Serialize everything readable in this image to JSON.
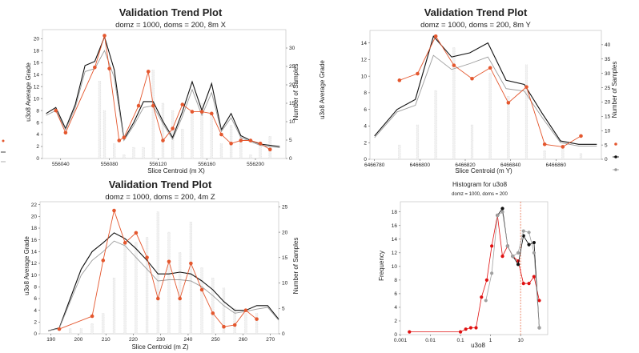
{
  "charts": [
    {
      "title": "Validation Trend Plot",
      "subtitle": "domz = 1000, doms = 200, 8m X",
      "xlabel": "Slice Centroid (m X)",
      "ylabel": "u3o8 Average Grade",
      "y2label": "Number of Samples"
    },
    {
      "title": "Validation Trend Plot",
      "subtitle": "domz = 1000, doms = 200, 8m Y",
      "xlabel": "Slice Centroid (m Y)",
      "ylabel": "u3o8 Average Grade",
      "y2label": "Number of Samples"
    },
    {
      "title": "Validation Trend Plot",
      "subtitle": "domz = 1000, doms = 200, 4m Z",
      "xlabel": "Slice Centroid (m Z)",
      "ylabel": "u3o8 Average Grade",
      "y2label": "Number of Samples"
    },
    {
      "title": "Histogram for u3o8",
      "subtitle": "domz = 1000, doms = 200",
      "xlabel": "u3o8",
      "ylabel": "Frequency"
    }
  ],
  "colors": {
    "samples": "#e4572e",
    "estimate": "#111111",
    "estimate2": "#9a9a9a",
    "bars": "#d4d4d4",
    "hist_red": "#e01010",
    "hist_black": "#111111",
    "hist_gray": "#a0a0a0",
    "median_line": "#e4572e"
  },
  "chart_data": [
    {
      "type": "line",
      "xlim": [
        556025,
        556225
      ],
      "xticks": [
        556040,
        556080,
        556120,
        556160,
        556200
      ],
      "ylim": [
        0,
        21.5
      ],
      "yticks": [
        0,
        2,
        4,
        6,
        8,
        10,
        12,
        14,
        16,
        18,
        20
      ],
      "y2lim": [
        0,
        35
      ],
      "y2ticks": [
        0,
        5,
        10,
        15,
        20,
        25,
        30
      ],
      "bars": {
        "x": [
          556072,
          556076,
          556084,
          556092,
          556100,
          556108,
          556116,
          556124,
          556132,
          556140,
          556148,
          556156,
          556164,
          556172,
          556180,
          556188,
          556196,
          556204,
          556212
        ],
        "values": [
          21,
          13,
          4,
          1,
          3,
          3,
          24,
          15,
          13,
          8,
          12,
          15,
          12,
          4,
          9,
          6,
          1,
          4,
          6
        ]
      },
      "series": [
        {
          "x": [
            556028,
            556036,
            556044,
            556052,
            556060,
            556068,
            556076,
            556084,
            556092,
            556100,
            556108,
            556116,
            556124,
            556132,
            556140,
            556148,
            556156,
            556164,
            556172,
            556180,
            556188,
            556196,
            556204,
            556212,
            556220
          ],
          "values": [
            7.5,
            8.5,
            5.0,
            9.0,
            15.5,
            16.2,
            20.3,
            14.8,
            3.2,
            6.0,
            9.5,
            9.5,
            6.2,
            3.5,
            7.8,
            12.8,
            8.0,
            12.5,
            4.8,
            7.5,
            3.8,
            3.0,
            2.4,
            2.2,
            2.0
          ]
        },
        {
          "x": [
            556028,
            556036,
            556044,
            556052,
            556060,
            556068,
            556076,
            556084,
            556092,
            556100,
            556108,
            556116,
            556124,
            556132,
            556140,
            556148,
            556156,
            556164,
            556172,
            556180,
            556188,
            556196,
            556204,
            556212,
            556220
          ],
          "values": [
            7.2,
            8.0,
            4.8,
            8.5,
            14.5,
            15.0,
            18.0,
            13.5,
            3.0,
            5.5,
            8.5,
            8.8,
            5.8,
            3.2,
            7.0,
            11.5,
            7.2,
            11.0,
            4.5,
            6.8,
            3.5,
            2.8,
            2.2,
            2.0,
            1.8
          ]
        },
        {
          "x": [
            556036,
            556044,
            556068,
            556076,
            556080,
            556088,
            556092,
            556104,
            556112,
            556116,
            556124,
            556132,
            556140,
            556148,
            556156,
            556164,
            556172,
            556180,
            556188,
            556196,
            556204,
            556212
          ],
          "values": [
            8.0,
            4.3,
            15.2,
            20.5,
            15.0,
            3.0,
            3.5,
            8.8,
            14.5,
            8.8,
            3.0,
            5.0,
            9.0,
            7.8,
            7.8,
            7.5,
            4.0,
            2.5,
            3.0,
            3.0,
            2.5,
            1.5
          ]
        }
      ]
    },
    {
      "type": "line",
      "xlim": [
        6466778,
        6466880
      ],
      "xticks": [
        6466780,
        6466800,
        6466820,
        6466840,
        6466860
      ],
      "ylim": [
        0,
        15.5
      ],
      "yticks": [
        0,
        2,
        4,
        6,
        8,
        10,
        12,
        14
      ],
      "y2lim": [
        0,
        45
      ],
      "y2ticks": [
        0,
        5,
        10,
        15,
        20,
        25,
        30,
        35,
        40
      ],
      "bars": {
        "x": [
          6466791,
          6466799,
          6466807,
          6466815,
          6466823,
          6466831,
          6466839,
          6466847,
          6466855,
          6466863,
          6466871
        ],
        "values": [
          5,
          12,
          24,
          39,
          12,
          30,
          22,
          33,
          3,
          5,
          2
        ]
      },
      "series": [
        {
          "x": [
            6466780,
            6466790,
            6466798,
            6466806,
            6466814,
            6466822,
            6466830,
            6466838,
            6466846,
            6466854,
            6466862,
            6466870,
            6466878
          ],
          "values": [
            2.8,
            6.0,
            7.2,
            14.8,
            12.3,
            12.8,
            14.0,
            9.5,
            9.0,
            5.5,
            2.2,
            1.8,
            1.8
          ]
        },
        {
          "x": [
            6466780,
            6466790,
            6466798,
            6466806,
            6466814,
            6466822,
            6466830,
            6466838,
            6466846,
            6466854,
            6466862,
            6466870,
            6466878
          ],
          "values": [
            2.6,
            5.7,
            6.5,
            12.5,
            10.8,
            11.5,
            12.3,
            8.5,
            8.2,
            5.0,
            2.0,
            1.6,
            1.6
          ]
        },
        {
          "x": [
            6466791,
            6466799,
            6466807,
            6466815,
            6466823,
            6466831,
            6466839,
            6466847,
            6466855,
            6466863,
            6466871
          ],
          "values": [
            9.5,
            10.3,
            14.8,
            11.3,
            9.7,
            11.0,
            6.8,
            8.7,
            1.8,
            1.5,
            2.8
          ]
        }
      ]
    },
    {
      "type": "line",
      "xlim": [
        186,
        273
      ],
      "xticks": [
        190,
        200,
        210,
        220,
        230,
        240,
        250,
        260,
        270
      ],
      "ylim": [
        0,
        22.5
      ],
      "yticks": [
        0,
        2,
        4,
        6,
        8,
        10,
        12,
        14,
        16,
        18,
        20,
        22
      ],
      "y2lim": [
        0,
        26
      ],
      "y2ticks": [
        0,
        5,
        10,
        15,
        20,
        25
      ],
      "bars": {
        "x": [
          197,
          201,
          205,
          209,
          213,
          217,
          221,
          225,
          229,
          233,
          237,
          241,
          245,
          249,
          253,
          257,
          261,
          265
        ],
        "values": [
          1,
          1,
          2,
          4,
          11,
          18,
          18,
          19,
          24,
          20,
          16,
          22,
          13,
          11,
          9,
          5,
          4,
          4
        ]
      },
      "series": [
        {
          "x": [
            189,
            193,
            197,
            201,
            205,
            209,
            213,
            217,
            221,
            225,
            229,
            233,
            237,
            241,
            245,
            249,
            253,
            257,
            261,
            265,
            269,
            273
          ],
          "values": [
            0.5,
            1.0,
            6.0,
            11.0,
            14.0,
            15.5,
            17.2,
            16.2,
            14.5,
            12.5,
            10.2,
            10.2,
            10.5,
            10.2,
            9.0,
            7.5,
            5.5,
            4.0,
            4.0,
            4.8,
            4.8,
            2.5
          ]
        },
        {
          "x": [
            189,
            193,
            197,
            201,
            205,
            209,
            213,
            217,
            221,
            225,
            229,
            233,
            237,
            241,
            245,
            249,
            253,
            257,
            261,
            265,
            269,
            273
          ],
          "values": [
            0.5,
            0.9,
            5.5,
            10.0,
            12.5,
            14.0,
            15.8,
            15.0,
            13.0,
            11.0,
            9.0,
            9.2,
            9.2,
            9.0,
            8.0,
            6.5,
            4.8,
            3.5,
            3.8,
            4.2,
            4.5,
            2.3
          ]
        },
        {
          "x": [
            193,
            205,
            209,
            213,
            217,
            221,
            225,
            229,
            233,
            237,
            241,
            245,
            249,
            253,
            257,
            261,
            265
          ],
          "values": [
            0.8,
            3.0,
            12.5,
            21.0,
            15.5,
            17.2,
            13.0,
            6.0,
            12.3,
            6.0,
            12.0,
            7.5,
            3.5,
            1.2,
            1.5,
            4.0,
            2.5
          ]
        }
      ]
    },
    {
      "type": "line",
      "xscale": "log",
      "xlim": [
        0.001,
        80
      ],
      "xticks": [
        0.001,
        0.01,
        0.1,
        1,
        10
      ],
      "xticklabels": [
        "0.001",
        "0.01",
        "0.1",
        "1",
        "10"
      ],
      "ylim": [
        0,
        19.5
      ],
      "yticks": [
        0,
        2,
        4,
        6,
        8,
        10,
        12,
        14,
        16,
        18
      ],
      "vline_x": 10,
      "series": [
        {
          "x": [
            0.002,
            0.1,
            0.15,
            0.22,
            0.33,
            0.5,
            0.75,
            1.1,
            1.7,
            2.5,
            3.7,
            5.5,
            8.3,
            12.5,
            19,
            28,
            42
          ],
          "values": [
            0.4,
            0.4,
            0.8,
            1.0,
            1.0,
            5.5,
            8.0,
            13.0,
            17.5,
            11.5,
            13.0,
            11.5,
            10.8,
            7.5,
            7.5,
            8.5,
            5.0
          ]
        },
        {
          "x": [
            1.7,
            2.5,
            3.7,
            5.5,
            8.3,
            12.5,
            19,
            28,
            42
          ],
          "values": [
            17.5,
            18.5,
            13.0,
            11.5,
            10.3,
            14.5,
            13.2,
            13.5,
            1.0
          ]
        },
        {
          "x": [
            0.7,
            1.1,
            1.7,
            2.5,
            3.7,
            5.5,
            8.3,
            12.5,
            19,
            28,
            42
          ],
          "values": [
            5.0,
            9.0,
            17.5,
            18.0,
            13.0,
            11.5,
            12.0,
            15.2,
            15.0,
            12.0,
            1.0
          ]
        }
      ]
    }
  ]
}
